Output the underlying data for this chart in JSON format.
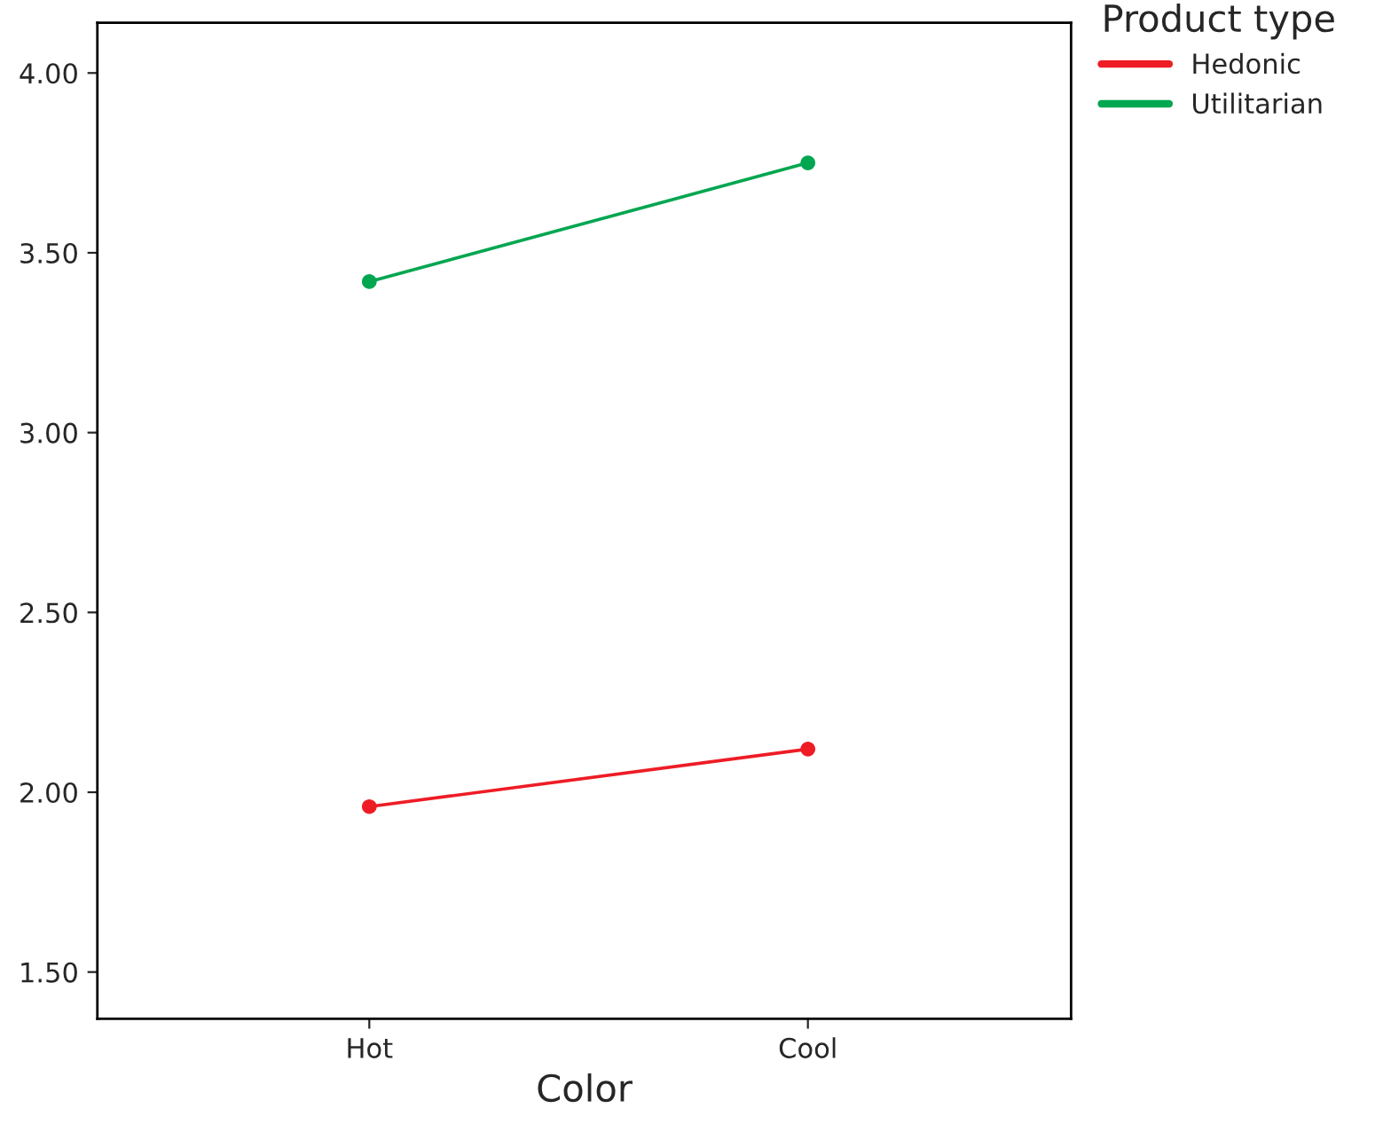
{
  "chart_data": {
    "type": "line",
    "xlabel": "Color",
    "legend_title": "Product type",
    "categories": [
      "Hot",
      "Cool"
    ],
    "series": [
      {
        "name": "Hedonic",
        "color": "#ee1c25",
        "values": [
          1.96,
          2.12
        ]
      },
      {
        "name": "Utilitarian",
        "color": "#00a650",
        "values": [
          3.42,
          3.75
        ]
      }
    ],
    "ylim": [
      1.37,
      4.14
    ],
    "yticks": [
      {
        "value": 1.5,
        "label": "1.50"
      },
      {
        "value": 2.0,
        "label": "2.00"
      },
      {
        "value": 2.5,
        "label": "2.50"
      },
      {
        "value": 3.0,
        "label": "3.00"
      },
      {
        "value": 3.5,
        "label": "3.50"
      },
      {
        "value": 4.0,
        "label": "4.00"
      }
    ],
    "grid": false,
    "legend": "top right",
    "marker": "circle",
    "line_style": "solid"
  }
}
